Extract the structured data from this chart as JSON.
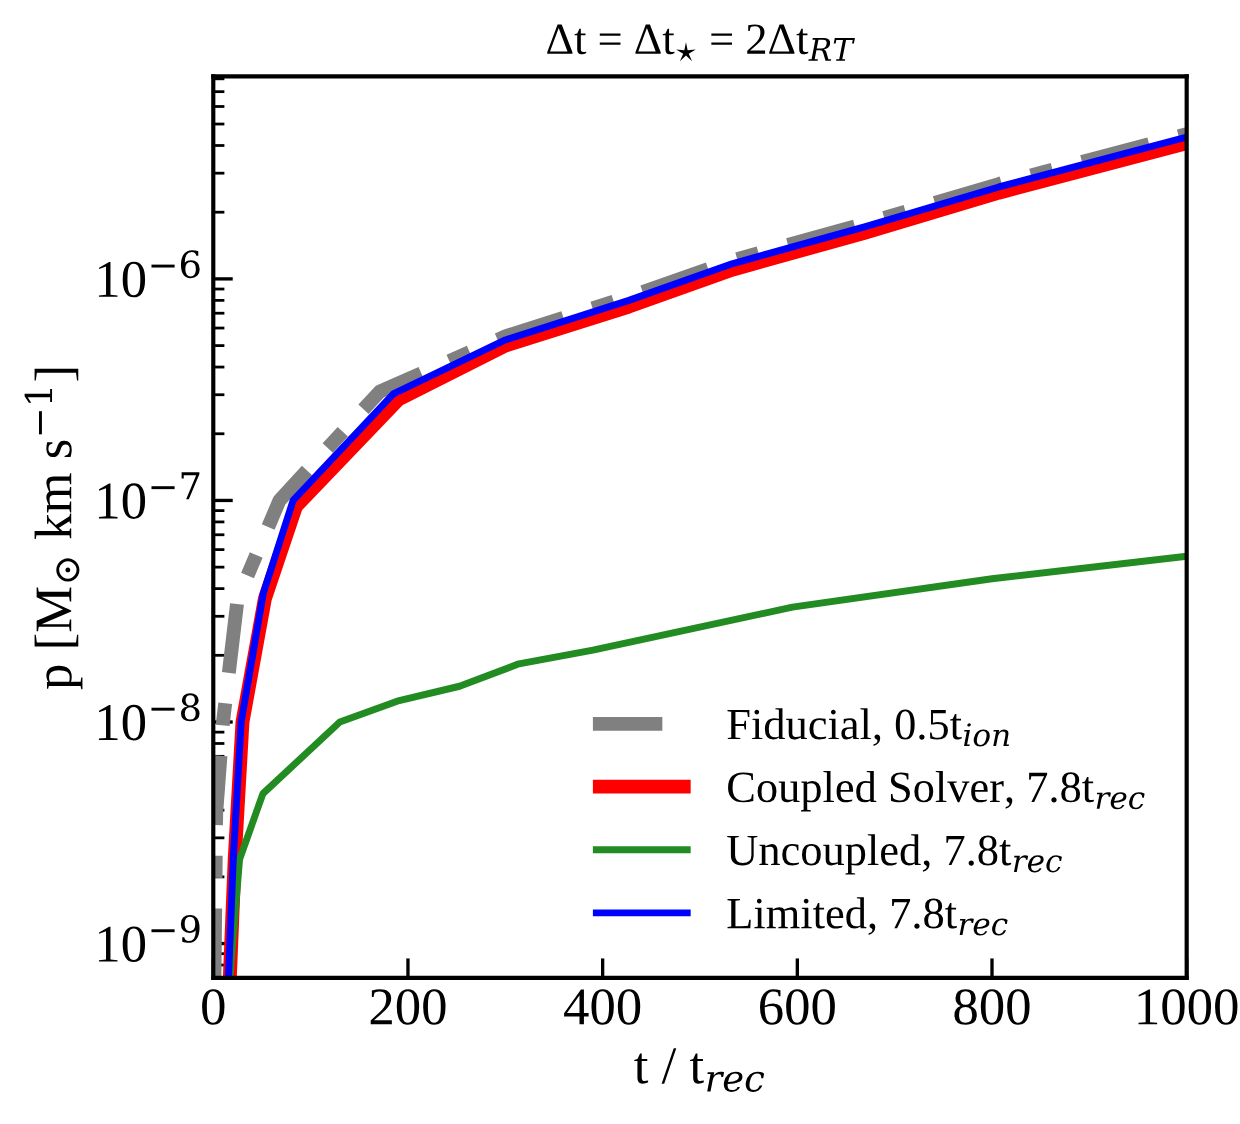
{
  "chart_data": {
    "type": "line",
    "title": "Δt = Δt$_{⋆}$ = 2Δt$_{RT}$",
    "xlabel": "t / t$_{rec}$",
    "ylabel": "p [M$_{⊙}$ km s$^{−1}$]",
    "log": "y",
    "xlim": [
      0,
      1000
    ],
    "ylim": [
      7e-10,
      8.2e-06
    ],
    "xticks": [
      0,
      200,
      400,
      600,
      800,
      1000
    ],
    "yticks": [
      {
        "value": 1e-09,
        "label": "10$^{−9}$"
      },
      {
        "value": 1e-08,
        "label": "10$^{−8}$"
      },
      {
        "value": 1e-07,
        "label": "10$^{−7}$"
      },
      {
        "value": 1e-06,
        "label": "10$^{−6}$"
      }
    ],
    "grid": false,
    "legend": "bottom right",
    "series": [
      {
        "name": "Fiducial, 0.5t$_{ion}$",
        "color": "#808080",
        "line_style": "dashed",
        "x": [
          1.2,
          3,
          10,
          25,
          68,
          171,
          300,
          427,
          533,
          670,
          807,
          1000
        ],
        "values": [
          7e-10,
          3.9e-09,
          1e-08,
          3.6e-08,
          1e-07,
          3.1e-07,
          5.5e-07,
          8.3e-07,
          1.21e-06,
          1.78e-06,
          2.68e-06,
          4.5e-06
        ]
      },
      {
        "name": "Coupled Solver, 7.8t$_{rec}$",
        "color": "#ff0000",
        "line_style": "solid",
        "x": [
          17,
          22,
          30,
          53,
          85,
          190,
          300,
          427,
          533,
          670,
          807,
          1000
        ],
        "values": [
          7e-10,
          2.4e-09,
          1e-08,
          3.6e-08,
          9.4e-08,
          2.85e-07,
          5e-07,
          7.5e-07,
          1.1e-06,
          1.62e-06,
          2.45e-06,
          4.1e-06
        ]
      },
      {
        "name": "Uncoupled, 7.8t$_{rec}$",
        "color": "#228b22",
        "line_style": "solid",
        "x": [
          17,
          27,
          51,
          130,
          191,
          253,
          314,
          390,
          595,
          800,
          1000
        ],
        "values": [
          7e-10,
          2.4e-09,
          4.75e-09,
          1e-08,
          1.25e-08,
          1.45e-08,
          1.83e-08,
          2.11e-08,
          3.3e-08,
          4.43e-08,
          5.6e-08
        ]
      },
      {
        "name": "Limited, 7.8t$_{rec}$",
        "color": "#0000ff",
        "line_style": "solid",
        "x": [
          15.6,
          20.5,
          28.7,
          51.3,
          82,
          185,
          300,
          427,
          533,
          670,
          807,
          1000
        ],
        "values": [
          7e-10,
          2.4e-09,
          1e-08,
          3.8e-08,
          1e-07,
          3.03e-07,
          5.3e-07,
          8e-07,
          1.17e-06,
          1.72e-06,
          2.6e-06,
          4.37e-06
        ]
      }
    ]
  }
}
